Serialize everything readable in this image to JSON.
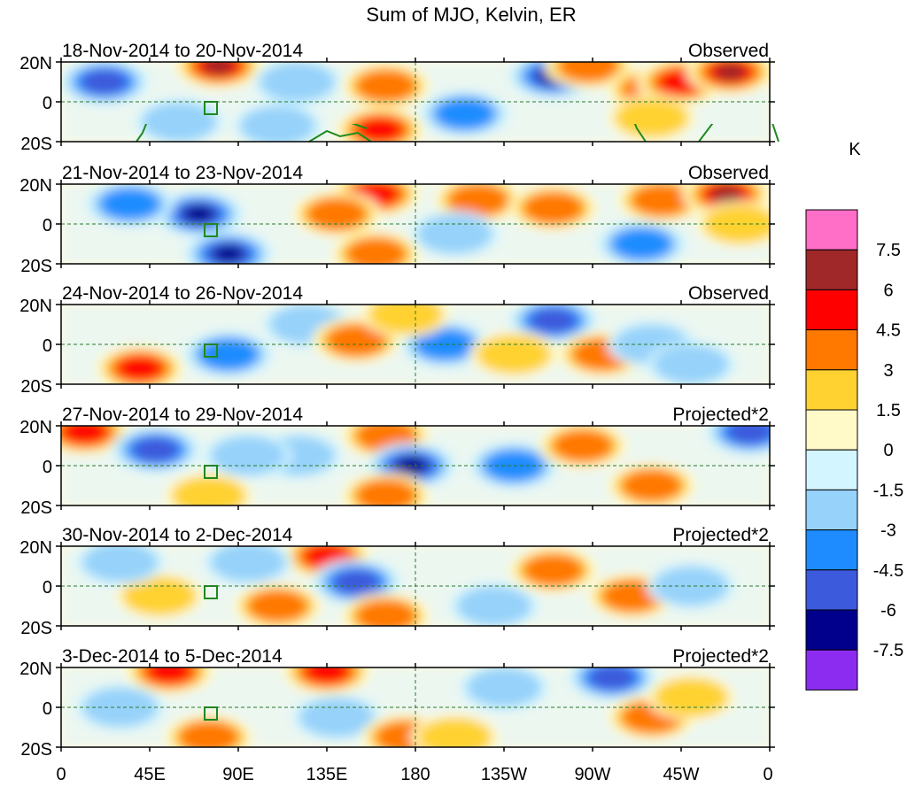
{
  "title": "Sum of MJO, Kelvin, ER",
  "lat_labels": [
    "20N",
    "0",
    "20S"
  ],
  "lon_labels": [
    "0",
    "45E",
    "90E",
    "135E",
    "180",
    "135W",
    "90W",
    "45W",
    "0"
  ],
  "colorbar": {
    "unit": "K",
    "tick_labels": [
      "7.5",
      "6",
      "4.5",
      "3",
      "1.5",
      "0",
      "-1.5",
      "-3",
      "-4.5",
      "-6",
      "-7.5"
    ],
    "colors": [
      "#ff6ec7",
      "#a02828",
      "#ff0000",
      "#ff7800",
      "#ffd232",
      "#fffac8",
      "#d2f5ff",
      "#96d2fa",
      "#1e8cff",
      "#3c5adc",
      "#00008c",
      "#8c2cf0"
    ]
  },
  "panels": [
    {
      "date": "18-Nov-2014 to 20-Nov-2014",
      "type": "Observed"
    },
    {
      "date": "21-Nov-2014 to 23-Nov-2014",
      "type": "Observed"
    },
    {
      "date": "24-Nov-2014 to 26-Nov-2014",
      "type": "Observed"
    },
    {
      "date": "27-Nov-2014 to 29-Nov-2014",
      "type": "Projected*2"
    },
    {
      "date": "30-Nov-2014 to 2-Dec-2014",
      "type": "Projected*2"
    },
    {
      "date": "3-Dec-2014 to 5-Dec-2014",
      "type": "Projected*2"
    }
  ],
  "anomaly_blobs": [
    [
      {
        "lon": 22,
        "lat": 10,
        "level": -4
      },
      {
        "lon": 80,
        "lat": 18,
        "level": 5
      },
      {
        "lon": 120,
        "lat": 10,
        "level": -2
      },
      {
        "lon": 165,
        "lat": 8,
        "level": 3
      },
      {
        "lon": 162,
        "lat": -14,
        "level": 4
      },
      {
        "lon": 205,
        "lat": -6,
        "level": -3
      },
      {
        "lon": 250,
        "lat": 13,
        "level": -5
      },
      {
        "lon": 268,
        "lat": 18,
        "level": 3
      },
      {
        "lon": 300,
        "lat": 6,
        "level": 3
      },
      {
        "lon": 315,
        "lat": 10,
        "level": 4
      },
      {
        "lon": 340,
        "lat": 15,
        "level": 5
      },
      {
        "lon": 300,
        "lat": -8,
        "level": 2
      },
      {
        "lon": 60,
        "lat": -10,
        "level": -2
      },
      {
        "lon": 110,
        "lat": -12,
        "level": -2
      }
    ],
    [
      {
        "lon": 70,
        "lat": 5,
        "level": -5
      },
      {
        "lon": 85,
        "lat": -15,
        "level": -5
      },
      {
        "lon": 35,
        "lat": 10,
        "level": -3
      },
      {
        "lon": 160,
        "lat": 15,
        "level": 4
      },
      {
        "lon": 140,
        "lat": 5,
        "level": 3
      },
      {
        "lon": 212,
        "lat": 12,
        "level": 3
      },
      {
        "lon": 250,
        "lat": 8,
        "level": 3
      },
      {
        "lon": 295,
        "lat": -10,
        "level": -3
      },
      {
        "lon": 305,
        "lat": 12,
        "level": 3
      },
      {
        "lon": 338,
        "lat": 15,
        "level": 5
      },
      {
        "lon": 345,
        "lat": 0,
        "level": 2
      },
      {
        "lon": 160,
        "lat": -15,
        "level": 3
      },
      {
        "lon": 200,
        "lat": -5,
        "level": -2
      }
    ],
    [
      {
        "lon": 40,
        "lat": -12,
        "level": 4
      },
      {
        "lon": 85,
        "lat": -5,
        "level": -3
      },
      {
        "lon": 125,
        "lat": 10,
        "level": -2
      },
      {
        "lon": 150,
        "lat": 2,
        "level": 3
      },
      {
        "lon": 195,
        "lat": 0,
        "level": -3
      },
      {
        "lon": 250,
        "lat": 12,
        "level": -4
      },
      {
        "lon": 275,
        "lat": -5,
        "level": 3
      },
      {
        "lon": 300,
        "lat": 0,
        "level": -2
      },
      {
        "lon": 320,
        "lat": -10,
        "level": -2
      },
      {
        "lon": 175,
        "lat": 15,
        "level": 2
      },
      {
        "lon": 230,
        "lat": -5,
        "level": 2
      }
    ],
    [
      {
        "lon": 12,
        "lat": 17,
        "level": 4
      },
      {
        "lon": 48,
        "lat": 8,
        "level": -4
      },
      {
        "lon": 120,
        "lat": 5,
        "level": -2
      },
      {
        "lon": 165,
        "lat": 15,
        "level": 3
      },
      {
        "lon": 178,
        "lat": 0,
        "level": -5
      },
      {
        "lon": 165,
        "lat": -15,
        "level": 3
      },
      {
        "lon": 230,
        "lat": 0,
        "level": -3
      },
      {
        "lon": 265,
        "lat": 10,
        "level": 3
      },
      {
        "lon": 300,
        "lat": -10,
        "level": 3
      },
      {
        "lon": 350,
        "lat": 17,
        "level": -4
      },
      {
        "lon": 95,
        "lat": 5,
        "level": -2
      },
      {
        "lon": 75,
        "lat": -15,
        "level": 2
      }
    ],
    [
      {
        "lon": 135,
        "lat": 15,
        "level": 4
      },
      {
        "lon": 150,
        "lat": 2,
        "level": -4
      },
      {
        "lon": 165,
        "lat": -15,
        "level": 3
      },
      {
        "lon": 110,
        "lat": -10,
        "level": 3
      },
      {
        "lon": 50,
        "lat": -5,
        "level": 2
      },
      {
        "lon": 95,
        "lat": 12,
        "level": -2
      },
      {
        "lon": 250,
        "lat": 8,
        "level": 3
      },
      {
        "lon": 290,
        "lat": -5,
        "level": 3
      },
      {
        "lon": 320,
        "lat": 0,
        "level": -2
      },
      {
        "lon": 220,
        "lat": -10,
        "level": -2
      },
      {
        "lon": 30,
        "lat": 12,
        "level": -2
      }
    ],
    [
      {
        "lon": 55,
        "lat": 18,
        "level": 4
      },
      {
        "lon": 135,
        "lat": 18,
        "level": 4
      },
      {
        "lon": 140,
        "lat": -5,
        "level": -2
      },
      {
        "lon": 175,
        "lat": -15,
        "level": 3
      },
      {
        "lon": 75,
        "lat": -15,
        "level": 3
      },
      {
        "lon": 225,
        "lat": 10,
        "level": -2
      },
      {
        "lon": 280,
        "lat": 15,
        "level": -4
      },
      {
        "lon": 300,
        "lat": -5,
        "level": 3
      },
      {
        "lon": 320,
        "lat": 5,
        "level": 2
      },
      {
        "lon": 30,
        "lat": 0,
        "level": -2
      },
      {
        "lon": 200,
        "lat": -15,
        "level": 2
      }
    ]
  ]
}
